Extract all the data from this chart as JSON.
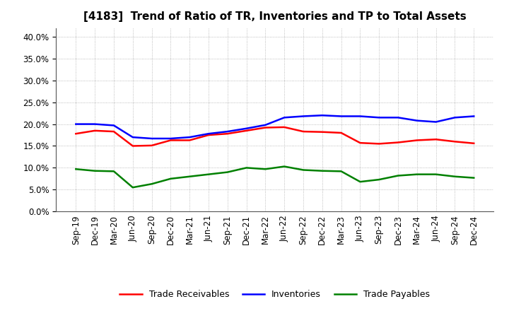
{
  "title": "[4183]  Trend of Ratio of TR, Inventories and TP to Total Assets",
  "x_labels": [
    "Sep-19",
    "Dec-19",
    "Mar-20",
    "Jun-20",
    "Sep-20",
    "Dec-20",
    "Mar-21",
    "Jun-21",
    "Sep-21",
    "Dec-21",
    "Mar-22",
    "Jun-22",
    "Sep-22",
    "Dec-22",
    "Mar-23",
    "Jun-23",
    "Sep-23",
    "Dec-23",
    "Mar-24",
    "Jun-24",
    "Sep-24",
    "Dec-24"
  ],
  "trade_receivables": [
    0.178,
    0.185,
    0.183,
    0.15,
    0.151,
    0.163,
    0.163,
    0.175,
    0.178,
    0.185,
    0.192,
    0.193,
    0.183,
    0.182,
    0.18,
    0.157,
    0.155,
    0.158,
    0.163,
    0.165,
    0.16,
    0.156
  ],
  "inventories": [
    0.2,
    0.2,
    0.197,
    0.17,
    0.167,
    0.167,
    0.17,
    0.178,
    0.183,
    0.19,
    0.198,
    0.215,
    0.218,
    0.22,
    0.218,
    0.218,
    0.215,
    0.215,
    0.208,
    0.205,
    0.215,
    0.218
  ],
  "trade_payables": [
    0.097,
    0.093,
    0.092,
    0.055,
    0.063,
    0.075,
    0.08,
    0.085,
    0.09,
    0.1,
    0.097,
    0.103,
    0.095,
    0.093,
    0.092,
    0.068,
    0.073,
    0.082,
    0.085,
    0.085,
    0.08,
    0.077
  ],
  "colors": {
    "trade_receivables": "#FF0000",
    "inventories": "#0000FF",
    "trade_payables": "#008000"
  },
  "ylim": [
    0.0,
    0.42
  ],
  "yticks": [
    0.0,
    0.05,
    0.1,
    0.15,
    0.2,
    0.25,
    0.3,
    0.35,
    0.4
  ],
  "background_color": "#FFFFFF",
  "grid_color": "#AAAAAA",
  "title_fontsize": 11,
  "tick_fontsize": 8.5,
  "legend_fontsize": 9,
  "linewidth": 1.8
}
